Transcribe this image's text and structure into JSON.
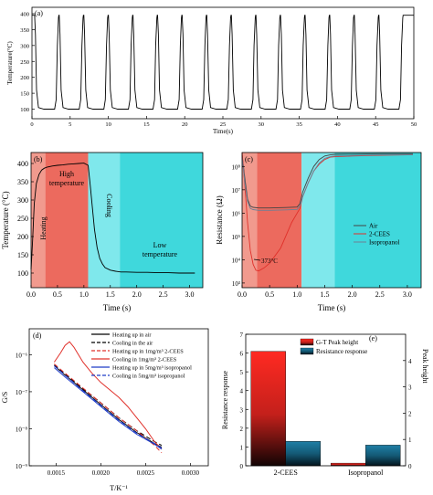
{
  "chart_data": [
    {
      "id": "a",
      "type": "line",
      "panel_label": "(a)",
      "xlabel": "Time(s)",
      "ylabel": "Temperature(°C)",
      "xlim": [
        0,
        50
      ],
      "ylim": [
        70,
        420
      ],
      "xticks": [
        "0",
        "5",
        "10",
        "15",
        "20",
        "25",
        "30",
        "35",
        "40",
        "45",
        "50"
      ],
      "yticks": [
        "100",
        "150",
        "200",
        "250",
        "300",
        "350",
        "400"
      ],
      "series": [
        {
          "color": "#000000",
          "cycle_period_s": 3.22,
          "cycles": 15,
          "high_c": 395,
          "low_c": 100,
          "heat_s": 0.4,
          "hold_high_s": 1.15,
          "cool_s": 0.5,
          "start": {
            "x": 0.0,
            "y": 395
          },
          "end": {
            "x": 50.0,
            "y": 395
          }
        }
      ]
    },
    {
      "id": "b",
      "type": "line",
      "panel_label": "(b)",
      "xlabel": "Time (s)",
      "ylabel": "Temperature (°C)",
      "xlim": [
        0,
        3.25
      ],
      "ylim": [
        60,
        430
      ],
      "xticks": [
        "0.0",
        "0.5",
        "1.0",
        "1.5",
        "2.0",
        "2.5",
        "3.0"
      ],
      "yticks": [
        "100",
        "150",
        "200",
        "250",
        "300",
        "350",
        "400"
      ],
      "regions": [
        {
          "name": "Heating",
          "x0": 0.0,
          "x1": 0.27,
          "color": "#f19a8e"
        },
        {
          "name": "High temperature",
          "x0": 0.27,
          "x1": 1.08,
          "color": "#ec6a5e"
        },
        {
          "name": "Cooling",
          "x0": 1.08,
          "x1": 1.68,
          "color": "#7fe8ec"
        },
        {
          "name": "Low temperature",
          "x0": 1.68,
          "x1": 3.25,
          "color": "#3fd8dc"
        }
      ],
      "region_labels": [
        "Heating",
        "High\ntemperature",
        "Cooling",
        "Low\ntemperature"
      ],
      "series": [
        {
          "color": "#000000",
          "x": [
            0,
            0.03,
            0.06,
            0.1,
            0.15,
            0.2,
            0.25,
            0.3,
            0.4,
            0.5,
            0.6,
            0.7,
            0.8,
            0.9,
            1.0,
            1.08,
            1.12,
            1.16,
            1.2,
            1.25,
            1.3,
            1.35,
            1.4,
            1.5,
            1.6,
            1.7,
            1.8,
            2.0,
            2.2,
            2.4,
            2.6,
            2.8,
            3.0,
            3.1
          ],
          "y": [
            110,
            190,
            290,
            345,
            370,
            382,
            387,
            390,
            393,
            395,
            396,
            398,
            399,
            400,
            401,
            395,
            340,
            280,
            220,
            170,
            140,
            125,
            115,
            108,
            105,
            103,
            103,
            102,
            102,
            101,
            101,
            100,
            100,
            100
          ]
        }
      ]
    },
    {
      "id": "c",
      "type": "line",
      "panel_label": "(c)",
      "xlabel": "Time (s)",
      "ylabel": "Resistance (Ω)",
      "yscale": "log",
      "xlim": [
        0,
        3.25
      ],
      "ylim_exp": [
        2.8,
        8.6
      ],
      "xticks": [
        "0.0",
        "0.5",
        "1.0",
        "1.5",
        "2.0",
        "2.5",
        "3.0"
      ],
      "yticks": [
        "10³",
        "10⁴",
        "10⁵",
        "10⁶",
        "10⁷",
        "10⁸"
      ],
      "regions": [
        {
          "x0": 0.0,
          "x1": 0.27,
          "color": "#f19a8e"
        },
        {
          "x0": 0.27,
          "x1": 1.08,
          "color": "#ec6a5e"
        },
        {
          "x0": 1.08,
          "x1": 1.68,
          "color": "#7fe8ec"
        },
        {
          "x0": 1.68,
          "x1": 3.25,
          "color": "#3fd8dc"
        }
      ],
      "annotation": "373°C",
      "annotation_point": {
        "x": 0.27,
        "y_exp": 3.52
      },
      "series": [
        {
          "name": "Air",
          "color": "#444444",
          "x": [
            0,
            0.05,
            0.1,
            0.15,
            0.2,
            0.3,
            0.5,
            0.8,
            1.0,
            1.05,
            1.1,
            1.2,
            1.3,
            1.4,
            1.5,
            1.6,
            1.7,
            2.0,
            2.5,
            3.0,
            3.1
          ],
          "y_exp": [
            8.5,
            7.5,
            6.6,
            6.3,
            6.25,
            6.22,
            6.22,
            6.24,
            6.26,
            6.4,
            6.9,
            7.5,
            8.0,
            8.3,
            8.45,
            8.5,
            8.52,
            8.53,
            8.55,
            8.55,
            8.55
          ]
        },
        {
          "name": "2-CEES",
          "color": "#e0302a",
          "x": [
            0,
            0.05,
            0.1,
            0.15,
            0.2,
            0.25,
            0.3,
            0.4,
            0.5,
            0.7,
            0.9,
            1.0,
            1.05,
            1.1,
            1.2,
            1.3,
            1.4,
            1.5,
            1.6,
            1.7,
            2.0,
            2.5,
            3.0,
            3.1
          ],
          "y_exp": [
            8.6,
            7.2,
            5.6,
            4.4,
            3.8,
            3.55,
            3.52,
            3.65,
            3.85,
            4.5,
            5.6,
            6.0,
            6.2,
            6.7,
            7.3,
            7.8,
            8.1,
            8.3,
            8.4,
            8.42,
            8.45,
            8.48,
            8.5,
            8.5
          ]
        },
        {
          "name": "Isopropanol",
          "color": "#6e7f95",
          "x": [
            0,
            0.05,
            0.1,
            0.15,
            0.2,
            0.3,
            0.5,
            0.8,
            1.0,
            1.05,
            1.1,
            1.2,
            1.3,
            1.4,
            1.5,
            1.6,
            1.7,
            2.0,
            2.5,
            3.0,
            3.1
          ],
          "y_exp": [
            8.4,
            7.3,
            6.5,
            6.2,
            6.15,
            6.12,
            6.12,
            6.14,
            6.16,
            6.3,
            6.7,
            7.3,
            7.8,
            8.15,
            8.35,
            8.42,
            8.45,
            8.47,
            8.5,
            8.5,
            8.5
          ]
        }
      ]
    },
    {
      "id": "d",
      "type": "line",
      "panel_label": "(d)",
      "xlabel": "T/K⁻¹",
      "ylabel": "G/S",
      "yscale": "log",
      "xlim": [
        0.0012,
        0.0032
      ],
      "ylim_exp": [
        -9,
        -5.3
      ],
      "xticks": [
        "0.0015",
        "0.0020",
        "0.0025",
        "0.0030"
      ],
      "yticks": [
        "10⁻⁶",
        "10⁻⁷",
        "10⁻⁸",
        "10⁻⁹"
      ],
      "series": [
        {
          "name": "Heating up in air",
          "color": "#000000",
          "dash": "",
          "x": [
            0.00148,
            0.0016,
            0.0018,
            0.002,
            0.0022,
            0.0024,
            0.0026,
            0.00268
          ],
          "y_exp": [
            -6.3,
            -6.55,
            -6.95,
            -7.35,
            -7.75,
            -8.1,
            -8.4,
            -8.5
          ]
        },
        {
          "name": "Cooling in the air",
          "color": "#000000",
          "dash": "5,3",
          "x": [
            0.00148,
            0.0016,
            0.0018,
            0.002,
            0.0022,
            0.0024,
            0.0026,
            0.00268
          ],
          "y_exp": [
            -6.28,
            -6.52,
            -6.92,
            -7.3,
            -7.7,
            -8.05,
            -8.35,
            -8.45
          ]
        },
        {
          "name": "Heating up in 1mg/m³ 2-CEES",
          "color": "#e0302a",
          "dash": "5,3",
          "x": [
            0.00148,
            0.0016,
            0.0018,
            0.002,
            0.0022,
            0.0024,
            0.0026,
            0.00268
          ],
          "y_exp": [
            -6.25,
            -6.5,
            -6.9,
            -7.3,
            -7.7,
            -8.05,
            -8.45,
            -8.65
          ]
        },
        {
          "name": "Cooling in 1mg/m³ 2-CEES",
          "color": "#e0302a",
          "dash": "",
          "x": [
            0.00148,
            0.00155,
            0.0016,
            0.00165,
            0.0017,
            0.0018,
            0.0019,
            0.002,
            0.0021,
            0.0022,
            0.0023,
            0.0024,
            0.0025,
            0.0026,
            0.00268
          ],
          "y_exp": [
            -6.2,
            -5.95,
            -5.75,
            -5.65,
            -5.8,
            -6.2,
            -6.5,
            -6.75,
            -6.95,
            -7.15,
            -7.4,
            -7.7,
            -8.0,
            -8.35,
            -8.55
          ]
        },
        {
          "name": "Heating up in 5mg/m³ isopropanol",
          "color": "#1f3cc8",
          "dash": "",
          "x": [
            0.00148,
            0.0016,
            0.0018,
            0.002,
            0.0022,
            0.0024,
            0.0026,
            0.00268
          ],
          "y_exp": [
            -6.35,
            -6.6,
            -7.0,
            -7.4,
            -7.8,
            -8.15,
            -8.42,
            -8.55
          ]
        },
        {
          "name": "Cooling in 5mg/m³ isopropanol",
          "color": "#1f3cc8",
          "dash": "5,3",
          "x": [
            0.00148,
            0.0016,
            0.0018,
            0.002,
            0.0022,
            0.0024,
            0.0026,
            0.00268
          ],
          "y_exp": [
            -6.3,
            -6.55,
            -6.97,
            -7.37,
            -7.77,
            -8.12,
            -8.4,
            -8.52
          ]
        }
      ]
    },
    {
      "id": "e",
      "type": "bar",
      "panel_label": "(e)",
      "categories": [
        "2-CEES",
        "Isopropanol"
      ],
      "ylabel": "Resistance response",
      "y2label": "Peak height",
      "ylim": [
        0,
        7
      ],
      "y2lim": [
        0,
        5
      ],
      "yticks": [
        "0",
        "1",
        "2",
        "3",
        "4",
        "5",
        "6",
        "7"
      ],
      "y2ticks": [
        "0",
        "1",
        "2",
        "3",
        "4"
      ],
      "series": [
        {
          "name": "G-T Peak height",
          "color": "#e0302a",
          "axis": "right",
          "values": [
            4.35,
            0.1
          ]
        },
        {
          "name": "Resistance response",
          "color": "#1d6b8a",
          "axis": "left",
          "values": [
            1.3,
            1.1
          ]
        }
      ]
    }
  ]
}
